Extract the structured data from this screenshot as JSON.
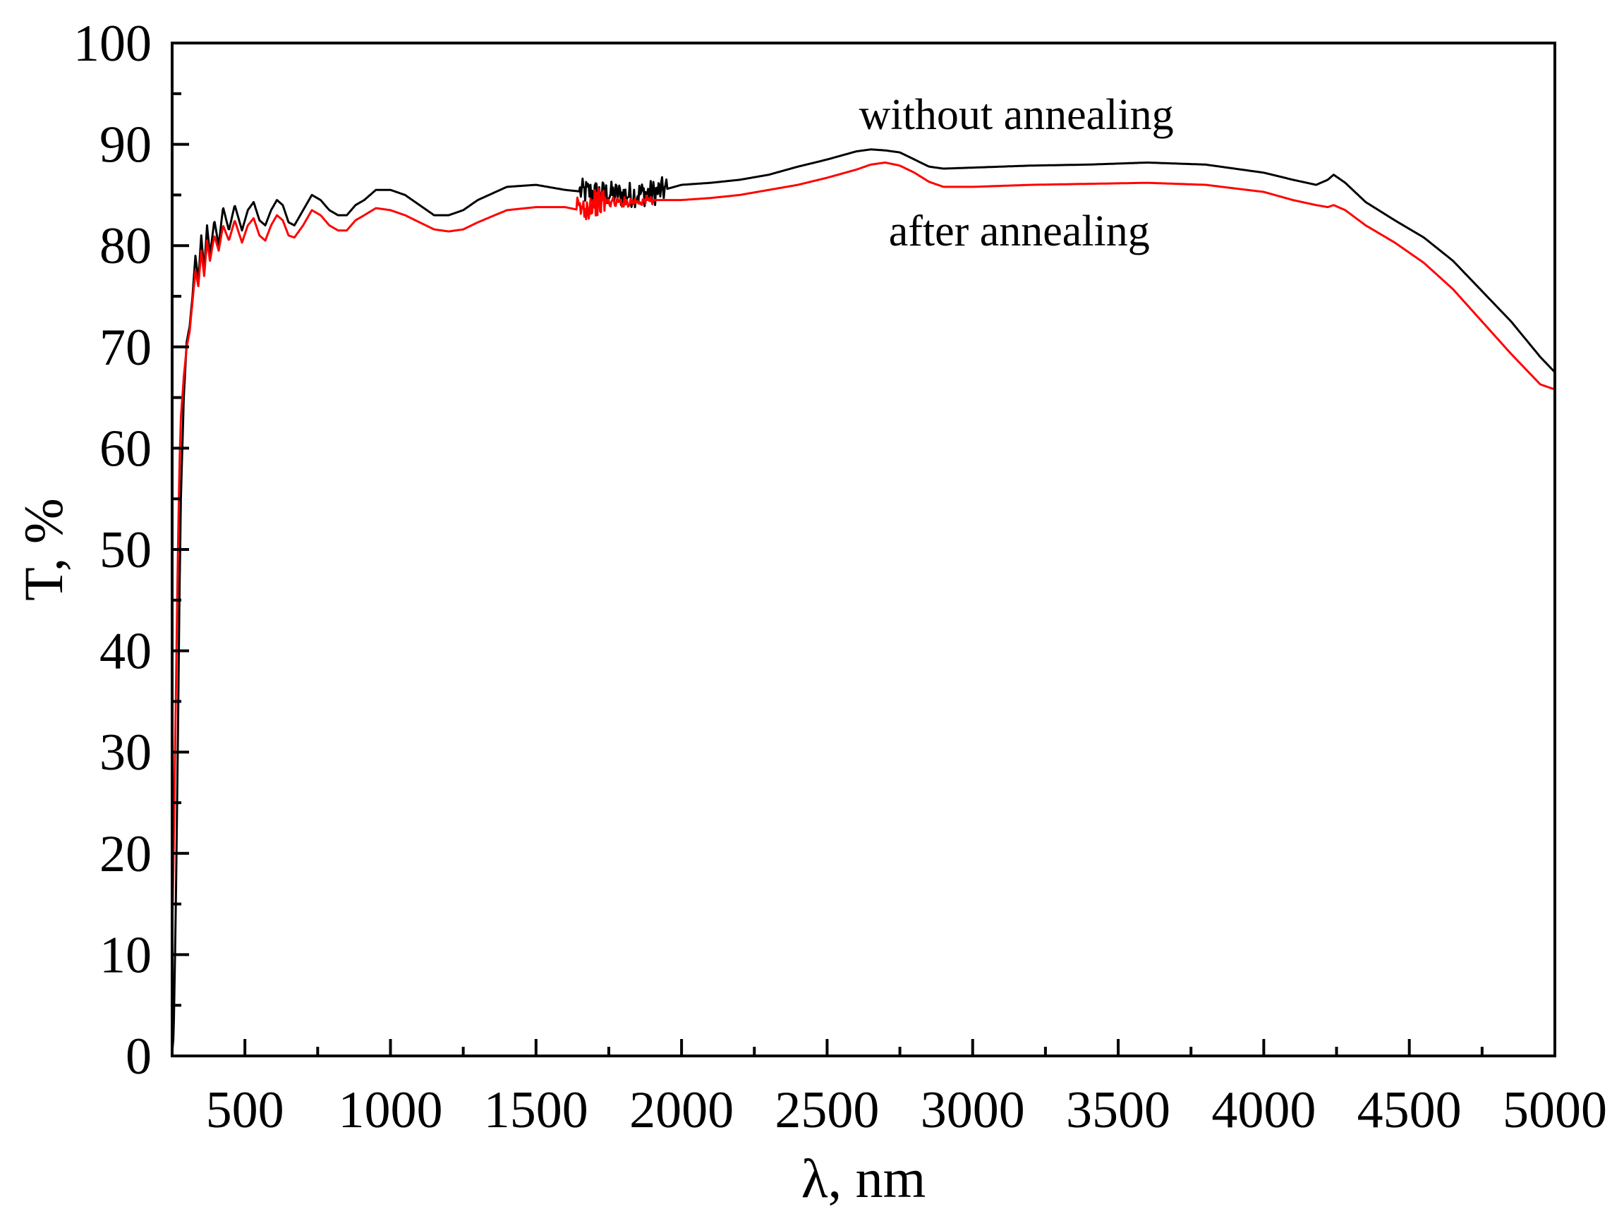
{
  "chart_data": {
    "type": "line",
    "title": "",
    "xlabel": "λ, nm",
    "ylabel": "T, %",
    "xlim": [
      250,
      5000
    ],
    "ylim": [
      0,
      100
    ],
    "x_ticks": [
      500,
      1000,
      1500,
      2000,
      2500,
      3000,
      3500,
      4000,
      4500,
      5000
    ],
    "x_minor_step": 250,
    "y_ticks": [
      0,
      10,
      20,
      30,
      40,
      50,
      60,
      70,
      80,
      90,
      100
    ],
    "y_minor_step": 5,
    "grid": false,
    "legend": "none",
    "annotations": [
      {
        "text": "without annealing",
        "x": 3150,
        "y": 91.5,
        "series": "without annealing"
      },
      {
        "text": "after annealing",
        "x": 3160,
        "y": 80.0,
        "series": "after annealing"
      }
    ],
    "series": [
      {
        "name": "without annealing",
        "color": "#000000",
        "noise": [
          [
            1650,
            1950,
            2.6
          ]
        ],
        "x": [
          250,
          255,
          260,
          265,
          270,
          275,
          280,
          290,
          300,
          310,
          320,
          330,
          340,
          350,
          360,
          370,
          380,
          395,
          410,
          425,
          445,
          465,
          490,
          510,
          530,
          550,
          570,
          590,
          610,
          630,
          650,
          670,
          700,
          730,
          760,
          790,
          820,
          850,
          880,
          910,
          950,
          1000,
          1050,
          1100,
          1150,
          1200,
          1250,
          1300,
          1400,
          1500,
          1600,
          1700,
          1800,
          1900,
          2000,
          2100,
          2200,
          2300,
          2400,
          2500,
          2600,
          2650,
          2700,
          2750,
          2800,
          2850,
          2900,
          3000,
          3200,
          3400,
          3600,
          3800,
          4000,
          4100,
          4180,
          4220,
          4240,
          4280,
          4350,
          4450,
          4550,
          4650,
          4750,
          4850,
          4950,
          5000
        ],
        "y": [
          0.2,
          2,
          10,
          20,
          32,
          45,
          55,
          65,
          70.5,
          72,
          75,
          79,
          76.5,
          81,
          77.5,
          82,
          79,
          82.5,
          80,
          83.8,
          81.5,
          84,
          81.5,
          83.5,
          84.3,
          82.5,
          82.0,
          83.5,
          84.5,
          84.0,
          82.3,
          82.0,
          83.5,
          85.0,
          84.5,
          83.5,
          83.0,
          83.0,
          84.0,
          84.5,
          85.5,
          85.5,
          85.0,
          84.0,
          83.0,
          83.0,
          83.5,
          84.5,
          85.8,
          86.0,
          85.5,
          85.2,
          85.0,
          85.2,
          86.0,
          86.2,
          86.5,
          87.0,
          87.8,
          88.5,
          89.3,
          89.5,
          89.4,
          89.2,
          88.5,
          87.8,
          87.6,
          87.7,
          87.9,
          88.0,
          88.2,
          88.0,
          87.2,
          86.5,
          86.0,
          86.5,
          87.0,
          86.2,
          84.3,
          82.5,
          80.8,
          78.5,
          75.5,
          72.5,
          69.0,
          67.5
        ]
      },
      {
        "name": "after annealing",
        "color": "#ff0000",
        "noise": [
          [
            1640,
            1740,
            2.8
          ],
          [
            1740,
            1900,
            1.0
          ]
        ],
        "x": [
          250,
          255,
          260,
          265,
          270,
          275,
          280,
          290,
          300,
          310,
          320,
          330,
          340,
          350,
          360,
          370,
          380,
          395,
          410,
          425,
          445,
          465,
          490,
          510,
          530,
          550,
          570,
          590,
          610,
          630,
          650,
          670,
          700,
          730,
          760,
          790,
          820,
          850,
          880,
          910,
          950,
          1000,
          1050,
          1100,
          1150,
          1200,
          1250,
          1300,
          1400,
          1500,
          1600,
          1650,
          1700,
          1800,
          1900,
          2000,
          2100,
          2200,
          2300,
          2400,
          2500,
          2600,
          2650,
          2700,
          2750,
          2800,
          2850,
          2900,
          3000,
          3200,
          3400,
          3600,
          3800,
          4000,
          4100,
          4180,
          4220,
          4240,
          4280,
          4350,
          4450,
          4550,
          4650,
          4750,
          4850,
          4950,
          5000
        ],
        "y": [
          12,
          20,
          30,
          40,
          50,
          58,
          63,
          67,
          70.0,
          71.5,
          74.5,
          77.5,
          76.0,
          79.5,
          77.0,
          80.5,
          78.5,
          81.0,
          79.5,
          82.0,
          80.5,
          82.5,
          80.3,
          82.0,
          82.7,
          81.0,
          80.5,
          82.0,
          83.0,
          82.5,
          81.0,
          80.8,
          82.0,
          83.5,
          83.0,
          82.0,
          81.5,
          81.5,
          82.5,
          83.0,
          83.7,
          83.5,
          83.0,
          82.3,
          81.6,
          81.4,
          81.6,
          82.3,
          83.5,
          83.8,
          83.8,
          83.5,
          84.3,
          84.3,
          84.5,
          84.5,
          84.7,
          85.0,
          85.5,
          86.0,
          86.7,
          87.5,
          88.0,
          88.2,
          87.9,
          87.2,
          86.3,
          85.8,
          85.8,
          86.0,
          86.1,
          86.2,
          86.0,
          85.3,
          84.5,
          84.0,
          83.8,
          84.0,
          83.5,
          82.0,
          80.3,
          78.3,
          75.7,
          72.5,
          69.3,
          66.3,
          65.8
        ]
      }
    ]
  }
}
